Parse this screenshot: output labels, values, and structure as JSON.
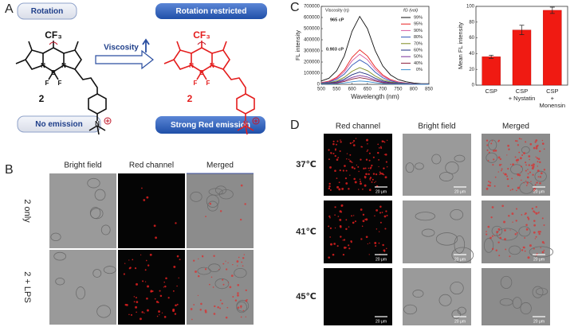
{
  "panel_a": {
    "label": "A",
    "rotation": "Rotation",
    "viscosity": "Viscosity",
    "rotation_restricted": "Rotation restricted",
    "no_emission": "No emission",
    "strong_emission": "Strong Red emission",
    "substituent": "CF₃",
    "compound": "2",
    "atoms": [
      "N",
      "B",
      "N",
      "F",
      "F",
      "N"
    ]
  },
  "panel_b": {
    "label": "B",
    "columns": [
      "Bright field",
      "Red channel",
      "Merged"
    ],
    "rows": [
      "2 only",
      "2 + LPS"
    ]
  },
  "panel_c": {
    "label": "C"
  },
  "chart_data": [
    {
      "type": "line",
      "x_label": "Wavelength (nm)",
      "y_label": "FL intensity",
      "legend_title": "fG (vol)",
      "annotations": [
        "Viscosity (η)",
        "965 cP",
        "0.903 cP"
      ],
      "x": [
        500,
        525,
        550,
        575,
        600,
        625,
        650,
        675,
        700,
        725,
        750,
        775,
        800,
        825,
        850
      ],
      "xlim": [
        500,
        850
      ],
      "xticks": [
        500,
        550,
        600,
        650,
        700,
        750,
        800,
        850
      ],
      "ylim": [
        0,
        700000
      ],
      "yticks": [
        0,
        100000,
        200000,
        300000,
        400000,
        500000,
        600000,
        700000
      ],
      "series": [
        {
          "name": "99%",
          "color": "#111111",
          "values": [
            30000,
            55000,
            122000,
            256000,
            476000,
            610000,
            500000,
            305000,
            165000,
            85000,
            43000,
            24000,
            12000,
            6000,
            6000
          ]
        },
        {
          "name": "95%",
          "color": "#e8201e",
          "values": [
            16000,
            28000,
            62000,
            130000,
            242000,
            310000,
            254000,
            155000,
            84000,
            43000,
            22000,
            12000,
            6000,
            3000,
            3000
          ]
        },
        {
          "name": "90%",
          "color": "#d85aa0",
          "values": [
            14000,
            24000,
            54000,
            113000,
            211000,
            270000,
            221000,
            135000,
            73000,
            38000,
            19000,
            11000,
            5000,
            3000,
            3000
          ]
        },
        {
          "name": "80%",
          "color": "#2f55b8",
          "values": [
            11000,
            20000,
            44000,
            92000,
            172000,
            220000,
            180000,
            110000,
            59000,
            31000,
            15000,
            9000,
            4000,
            2000,
            2000
          ]
        },
        {
          "name": "70%",
          "color": "#7d8a1f",
          "values": [
            8000,
            14000,
            30000,
            63000,
            117000,
            150000,
            123000,
            75000,
            41000,
            21000,
            11000,
            6000,
            3000,
            2000,
            2000
          ]
        },
        {
          "name": "60%",
          "color": "#1f2f80",
          "values": [
            6000,
            10000,
            22000,
            46000,
            86000,
            110000,
            90000,
            55000,
            30000,
            15000,
            8000,
            4000,
            2000,
            1000,
            1000
          ]
        },
        {
          "name": "50%",
          "color": "#7a2f9a",
          "values": [
            4000,
            7000,
            16000,
            34000,
            62000,
            80000,
            66000,
            40000,
            22000,
            11000,
            6000,
            3000,
            2000,
            1000,
            1000
          ]
        },
        {
          "name": "40%",
          "color": "#8a1f3a",
          "values": [
            3000,
            5000,
            12000,
            25000,
            47000,
            60000,
            49000,
            30000,
            16000,
            8000,
            4000,
            2000,
            1000,
            1000,
            1000
          ]
        },
        {
          "name": "0%",
          "color": "#3a8fd0",
          "values": [
            2000,
            3000,
            6000,
            13000,
            23000,
            30000,
            25000,
            15000,
            8000,
            4000,
            2000,
            1000,
            1000,
            0,
            0
          ]
        }
      ]
    },
    {
      "type": "bar",
      "y_label": "Mean FL intensity",
      "categories": [
        "CSP",
        "CSP\n+ Nystatin",
        "CSP\n+ Monensin"
      ],
      "values": [
        36,
        70,
        95
      ],
      "errors": [
        2,
        6,
        4
      ],
      "color": "#f01a12",
      "ylim": [
        0,
        100
      ],
      "yticks": [
        0,
        20,
        40,
        60,
        80,
        100
      ]
    }
  ],
  "panel_d": {
    "label": "D",
    "columns": [
      "Red channel",
      "Bright field",
      "Merged"
    ],
    "rows": [
      "37℃",
      "41℃",
      "45℃"
    ],
    "scale_bars": [
      [
        "20 μm",
        "20 μm",
        "20 μm"
      ],
      [
        "20 μm",
        "20 μm",
        "20 μm"
      ],
      [
        "20 μm",
        "20 μm",
        "20 μm"
      ]
    ]
  }
}
